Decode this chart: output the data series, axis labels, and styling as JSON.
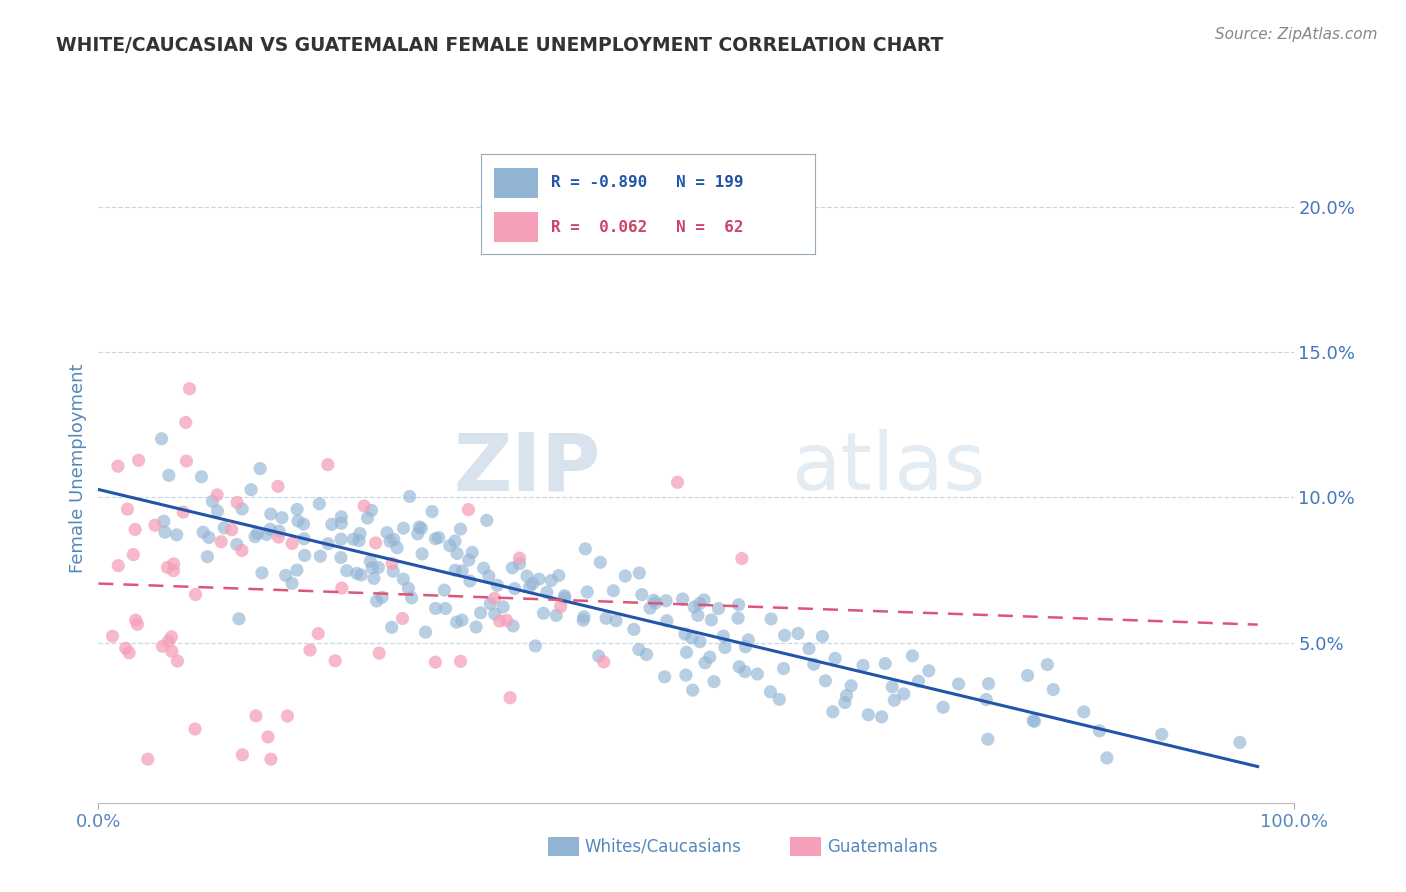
{
  "title": "WHITE/CAUCASIAN VS GUATEMALAN FEMALE UNEMPLOYMENT CORRELATION CHART",
  "source_text": "Source: ZipAtlas.com",
  "ylabel": "Female Unemployment",
  "watermark_zip": "ZIP",
  "watermark_atlas": "atlas",
  "blue_N": 199,
  "pink_N": 62,
  "blue_color": "#92b4d4",
  "pink_color": "#f5a0b8",
  "blue_line_color": "#2255aa",
  "pink_line_color": "#dd5577",
  "background_color": "#ffffff",
  "grid_color": "#c8d8e8",
  "axis_label_color": "#5588bb",
  "right_tick_color": "#4477bb",
  "ytick_labels": [
    "5.0%",
    "10.0%",
    "15.0%",
    "20.0%"
  ],
  "ytick_values": [
    0.05,
    0.1,
    0.15,
    0.2
  ],
  "xtick_labels": [
    "0.0%",
    "100.0%"
  ],
  "xlim": [
    0.0,
    1.0
  ],
  "ylim": [
    -0.005,
    0.225
  ],
  "legend_blue_text": "R = -0.890   N = 199",
  "legend_pink_text": "R =  0.062   N =  62",
  "legend_blue_color": "#2255aa",
  "legend_pink_color": "#cc4466",
  "bottom_label_blue": "Whites/Caucasians",
  "bottom_label_pink": "Guatemalans",
  "blue_seed": 42,
  "pink_seed": 99
}
